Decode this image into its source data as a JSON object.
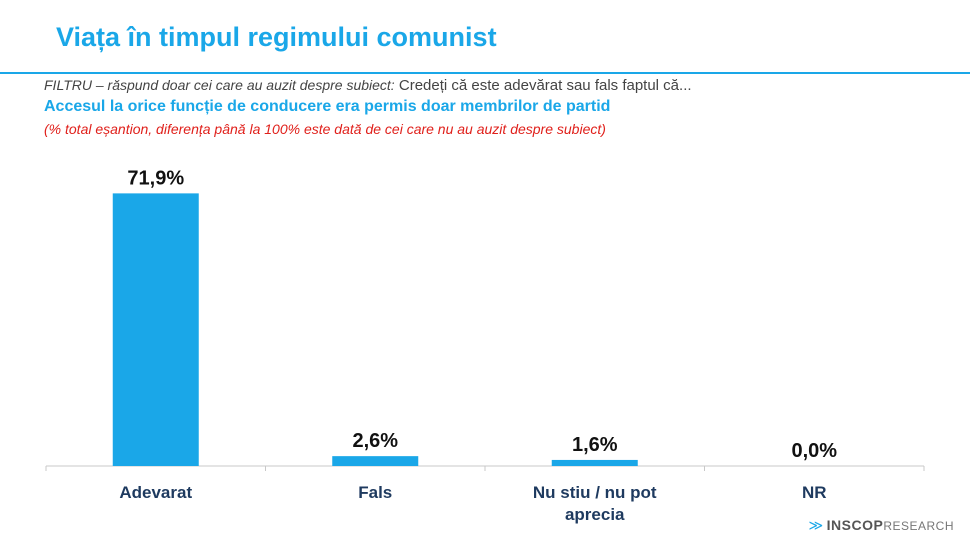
{
  "header": {
    "title": "Viața în timpul regimului comunist",
    "filter_italic": "FILTRU – răspund doar cei care au auzit despre subiect:",
    "filter_question": " Credeți că este adevărat sau fals faptul că...",
    "question": "Accesul la orice funcție de conducere era permis doar membrilor de partid",
    "note": "(% total eșantion, diferența până la 100% este dată de cei care nu au auzit despre subiect)"
  },
  "chart_data": {
    "type": "bar",
    "categories": [
      "Adevarat",
      "Fals",
      "Nu stiu / nu pot aprecia",
      "NR"
    ],
    "category_lines": [
      [
        "Adevarat"
      ],
      [
        "Fals"
      ],
      [
        "Nu stiu / nu pot",
        "aprecia"
      ],
      [
        "NR"
      ]
    ],
    "values": [
      71.9,
      2.6,
      1.6,
      0.0
    ],
    "value_labels": [
      "71,9%",
      "2,6%",
      "1,6%",
      "0,0%"
    ],
    "ylim": [
      0,
      72
    ],
    "grid": false,
    "bar_color": "#1aa7e8"
  },
  "logo": {
    "brand": "INSCOP",
    "sub": "RESEARCH"
  },
  "colors": {
    "accent": "#1aa7e8",
    "note": "#e0201b"
  }
}
